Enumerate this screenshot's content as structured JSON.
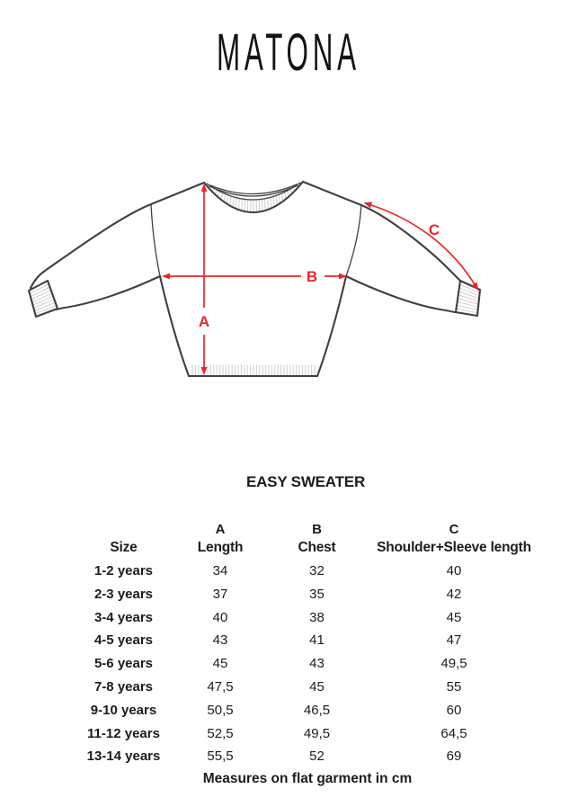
{
  "brand": {
    "name": "MATONA"
  },
  "diagram": {
    "measure_labels": {
      "a": "A",
      "b": "B",
      "c": "C"
    },
    "arrow_color": "#e8262a"
  },
  "product": {
    "title": "EASY SWEATER"
  },
  "size_table": {
    "columns": [
      {
        "letter": "",
        "label": "Size"
      },
      {
        "letter": "A",
        "label": "Length"
      },
      {
        "letter": "B",
        "label": "Chest"
      },
      {
        "letter": "C",
        "label": "Shoulder+Sleeve length"
      }
    ],
    "rows": [
      {
        "size": "1-2 years",
        "length": "34",
        "chest": "32",
        "sleeve": "40"
      },
      {
        "size": "2-3 years",
        "length": "37",
        "chest": "35",
        "sleeve": "42"
      },
      {
        "size": "3-4 years",
        "length": "40",
        "chest": "38",
        "sleeve": "45"
      },
      {
        "size": "4-5 years",
        "length": "43",
        "chest": "41",
        "sleeve": "47"
      },
      {
        "size": "5-6 years",
        "length": "45",
        "chest": "43",
        "sleeve": "49,5"
      },
      {
        "size": "7-8 years",
        "length": "47,5",
        "chest": "45",
        "sleeve": "55"
      },
      {
        "size": "9-10 years",
        "length": "50,5",
        "chest": "46,5",
        "sleeve": "60"
      },
      {
        "size": "11-12 years",
        "length": "52,5",
        "chest": "49,5",
        "sleeve": "64,5"
      },
      {
        "size": "13-14 years",
        "length": "55,5",
        "chest": "52",
        "sleeve": "69"
      }
    ],
    "footnote": "Measures on flat garment in cm"
  }
}
